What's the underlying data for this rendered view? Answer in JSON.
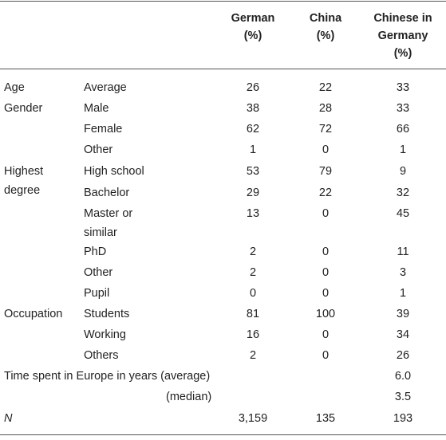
{
  "header": {
    "col_german": "German\n(%)",
    "col_china": "China\n(%)",
    "col_chinese_in_germany": "Chinese in\nGermany\n(%)"
  },
  "rows": [
    {
      "group": "Age",
      "label": "Average",
      "german": "26",
      "china": "22",
      "chinese_germany": "33"
    },
    {
      "group": "Gender",
      "label": "Male",
      "german": "38",
      "china": "28",
      "chinese_germany": "33"
    },
    {
      "group": "",
      "label": "Female",
      "german": "62",
      "china": "72",
      "chinese_germany": "66"
    },
    {
      "group": "",
      "label": "Other",
      "german": "1",
      "china": "0",
      "chinese_germany": "1"
    },
    {
      "group": "Highest\ndegree",
      "label": "High school",
      "german": "53",
      "china": "79",
      "chinese_germany": "9"
    },
    {
      "group": "",
      "label": "Bachelor",
      "german": "29",
      "china": "22",
      "chinese_germany": "32"
    },
    {
      "group": "",
      "label": "Master or\nsimilar",
      "german": "13",
      "china": "0",
      "chinese_germany": "45"
    },
    {
      "group": "",
      "label": "PhD",
      "german": "2",
      "china": "0",
      "chinese_germany": "11"
    },
    {
      "group": "",
      "label": "Other",
      "german": "2",
      "china": "0",
      "chinese_germany": "3"
    },
    {
      "group": "",
      "label": "Pupil",
      "german": "0",
      "china": "0",
      "chinese_germany": "1"
    },
    {
      "group": "Occupation",
      "label": "Students",
      "german": "81",
      "china": "100",
      "chinese_germany": "39"
    },
    {
      "group": "",
      "label": "Working",
      "german": "16",
      "china": "0",
      "chinese_germany": "34"
    },
    {
      "group": "",
      "label": "Others",
      "german": "2",
      "china": "0",
      "chinese_germany": "26"
    }
  ],
  "time_in_europe": {
    "label": "Time spent in Europe in years (average)",
    "average": "6.0",
    "median_label": "(median)",
    "median": "3.5"
  },
  "n_row": {
    "label": "N",
    "german": "3,159",
    "china": "135",
    "chinese_germany": "193"
  }
}
